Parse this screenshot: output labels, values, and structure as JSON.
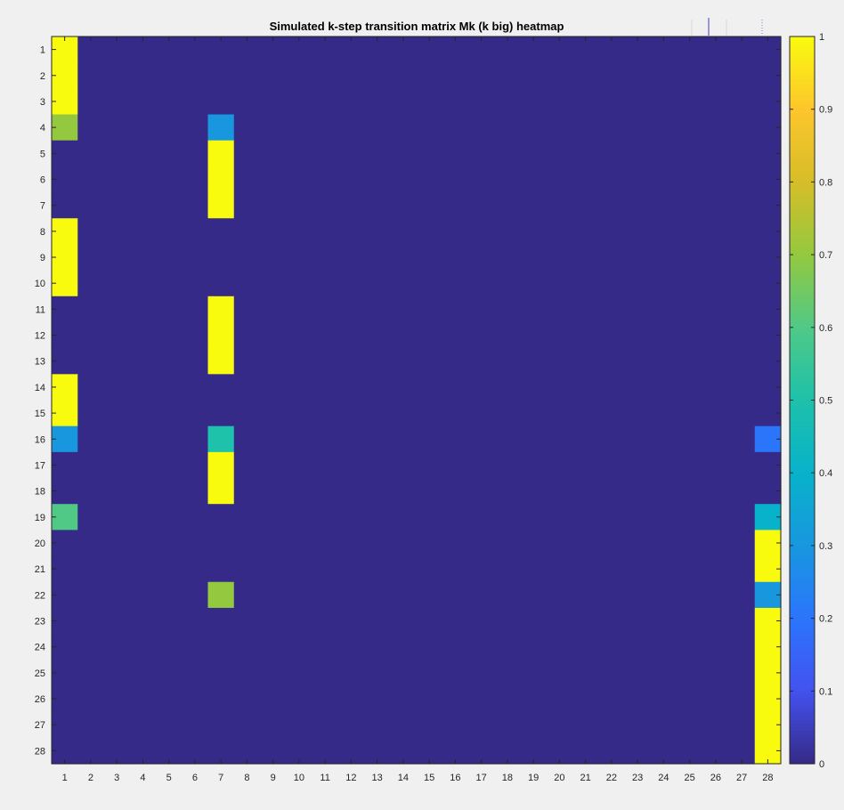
{
  "chart_data": {
    "type": "heatmap",
    "title": "Simulated k-step transition matrix Mk (k big) heatmap",
    "xlabel": "",
    "ylabel": "",
    "x_categories": [
      "1",
      "2",
      "3",
      "4",
      "5",
      "6",
      "7",
      "8",
      "9",
      "10",
      "11",
      "12",
      "13",
      "14",
      "15",
      "16",
      "17",
      "18",
      "19",
      "20",
      "21",
      "22",
      "23",
      "24",
      "25",
      "26",
      "27",
      "28"
    ],
    "y_categories": [
      "1",
      "2",
      "3",
      "4",
      "5",
      "6",
      "7",
      "8",
      "9",
      "10",
      "11",
      "12",
      "13",
      "14",
      "15",
      "16",
      "17",
      "18",
      "19",
      "20",
      "21",
      "22",
      "23",
      "24",
      "25",
      "26",
      "27",
      "28"
    ],
    "colorbar": {
      "range": [
        0,
        1
      ],
      "ticks": [
        0,
        0.1,
        0.2,
        0.3,
        0.4,
        0.5,
        0.6,
        0.7,
        0.8,
        0.9,
        1
      ],
      "tick_labels": [
        "0",
        "0.1",
        "0.2",
        "0.3",
        "0.4",
        "0.5",
        "0.6",
        "0.7",
        "0.8",
        "0.9",
        "1"
      ],
      "colormap": "parula"
    },
    "default_value": 0,
    "nonzero_cells": [
      {
        "row": 1,
        "col": 1,
        "value": 1
      },
      {
        "row": 2,
        "col": 1,
        "value": 1
      },
      {
        "row": 3,
        "col": 1,
        "value": 1
      },
      {
        "row": 4,
        "col": 1,
        "value": 0.7
      },
      {
        "row": 4,
        "col": 7,
        "value": 0.3
      },
      {
        "row": 5,
        "col": 7,
        "value": 1
      },
      {
        "row": 6,
        "col": 7,
        "value": 1
      },
      {
        "row": 7,
        "col": 7,
        "value": 1
      },
      {
        "row": 8,
        "col": 1,
        "value": 1
      },
      {
        "row": 9,
        "col": 1,
        "value": 1
      },
      {
        "row": 10,
        "col": 1,
        "value": 1
      },
      {
        "row": 11,
        "col": 7,
        "value": 1
      },
      {
        "row": 12,
        "col": 7,
        "value": 1
      },
      {
        "row": 13,
        "col": 7,
        "value": 1
      },
      {
        "row": 14,
        "col": 1,
        "value": 1
      },
      {
        "row": 15,
        "col": 1,
        "value": 1
      },
      {
        "row": 16,
        "col": 1,
        "value": 0.3
      },
      {
        "row": 16,
        "col": 7,
        "value": 0.5
      },
      {
        "row": 16,
        "col": 28,
        "value": 0.2
      },
      {
        "row": 17,
        "col": 7,
        "value": 1
      },
      {
        "row": 18,
        "col": 7,
        "value": 1
      },
      {
        "row": 19,
        "col": 1,
        "value": 0.6
      },
      {
        "row": 19,
        "col": 28,
        "value": 0.4
      },
      {
        "row": 20,
        "col": 28,
        "value": 1
      },
      {
        "row": 21,
        "col": 28,
        "value": 1
      },
      {
        "row": 22,
        "col": 7,
        "value": 0.7
      },
      {
        "row": 22,
        "col": 28,
        "value": 0.3
      },
      {
        "row": 23,
        "col": 28,
        "value": 1
      },
      {
        "row": 24,
        "col": 28,
        "value": 1
      },
      {
        "row": 25,
        "col": 28,
        "value": 1
      },
      {
        "row": 26,
        "col": 28,
        "value": 1
      },
      {
        "row": 27,
        "col": 28,
        "value": 1
      },
      {
        "row": 28,
        "col": 28,
        "value": 1
      }
    ],
    "grid": false
  }
}
